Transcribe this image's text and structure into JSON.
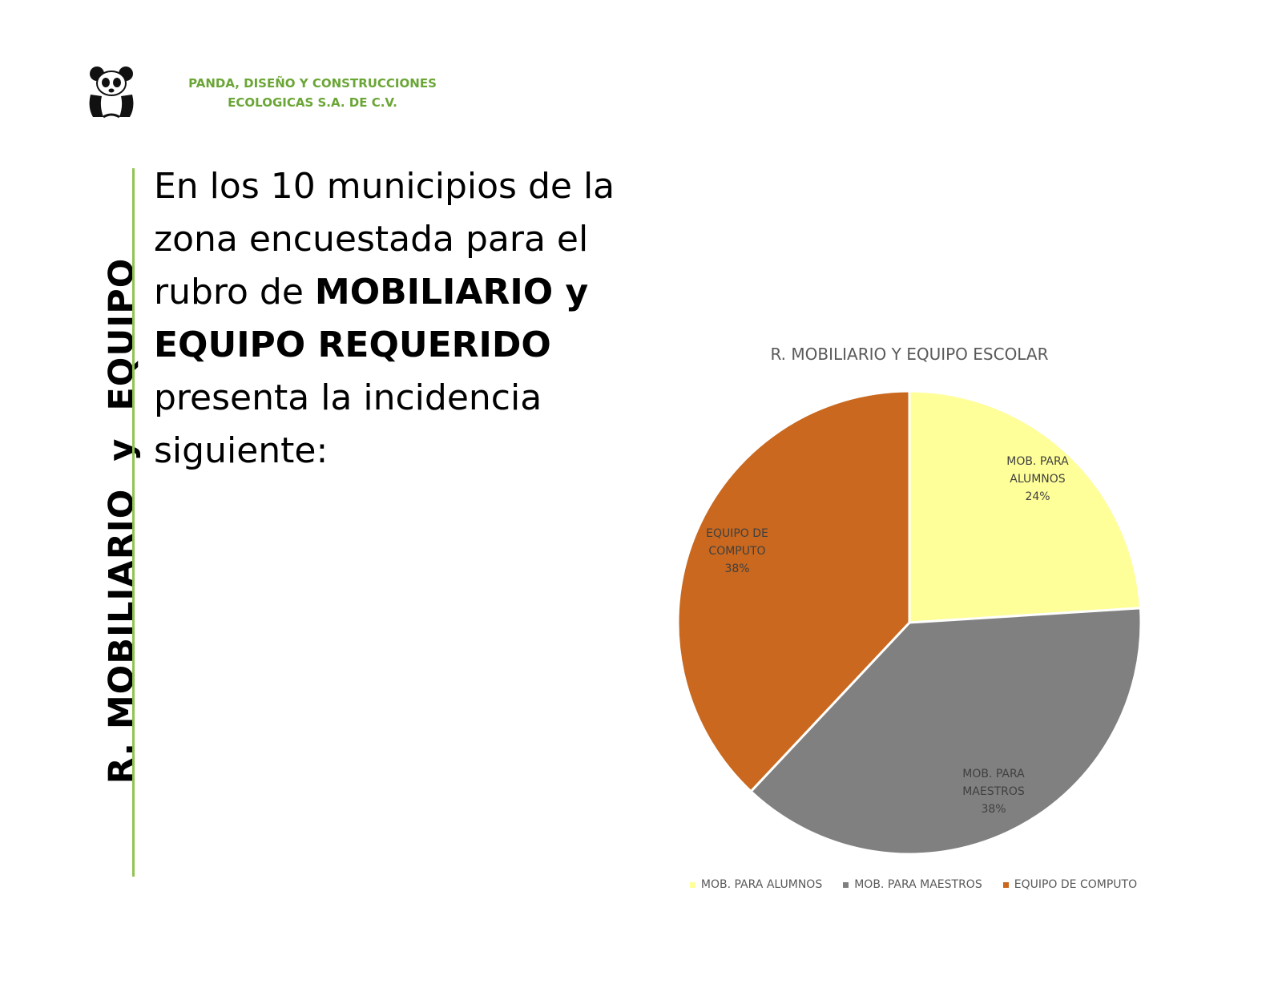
{
  "company": {
    "line1": "PANDA, DISEÑO Y CONSTRUCCIONES",
    "line2": "ECOLOGICAS S.A. DE C.V.",
    "logo_icon": "panda-logo-icon"
  },
  "side_title": {
    "part1": "R. MOBILIARIO",
    "part2": "y",
    "part3": "EQUIPO"
  },
  "intro": {
    "line1": "En los 10 municipios de la",
    "line2": "zona encuestada para el",
    "line3_plain": "rubro de ",
    "line3_bold": "MOBILIARIO y",
    "line4_bold": "EQUIPO REQUERIDO",
    "line5": "presenta la incidencia",
    "line6": "siguiente:"
  },
  "colors": {
    "brand_green": "#6aa636",
    "divider_green": "#92c353"
  },
  "chart_data": {
    "type": "pie",
    "title": "R. MOBILIARIO Y EQUIPO ESCOLAR",
    "legend_position": "bottom",
    "slices": [
      {
        "label_lines": [
          "MOB. PARA",
          "ALUMNOS"
        ],
        "legend": "MOB. PARA ALUMNOS",
        "value": 24,
        "value_label": "24%",
        "color": "#ffff99"
      },
      {
        "label_lines": [
          "MOB. PARA",
          "MAESTROS"
        ],
        "legend": "MOB. PARA MAESTROS",
        "value": 38,
        "value_label": "38%",
        "color": "#808080"
      },
      {
        "label_lines": [
          "EQUIPO DE",
          "COMPUTO"
        ],
        "legend": "EQUIPO DE COMPUTO",
        "value": 38,
        "value_label": "38%",
        "color": "#c9681e"
      }
    ]
  }
}
